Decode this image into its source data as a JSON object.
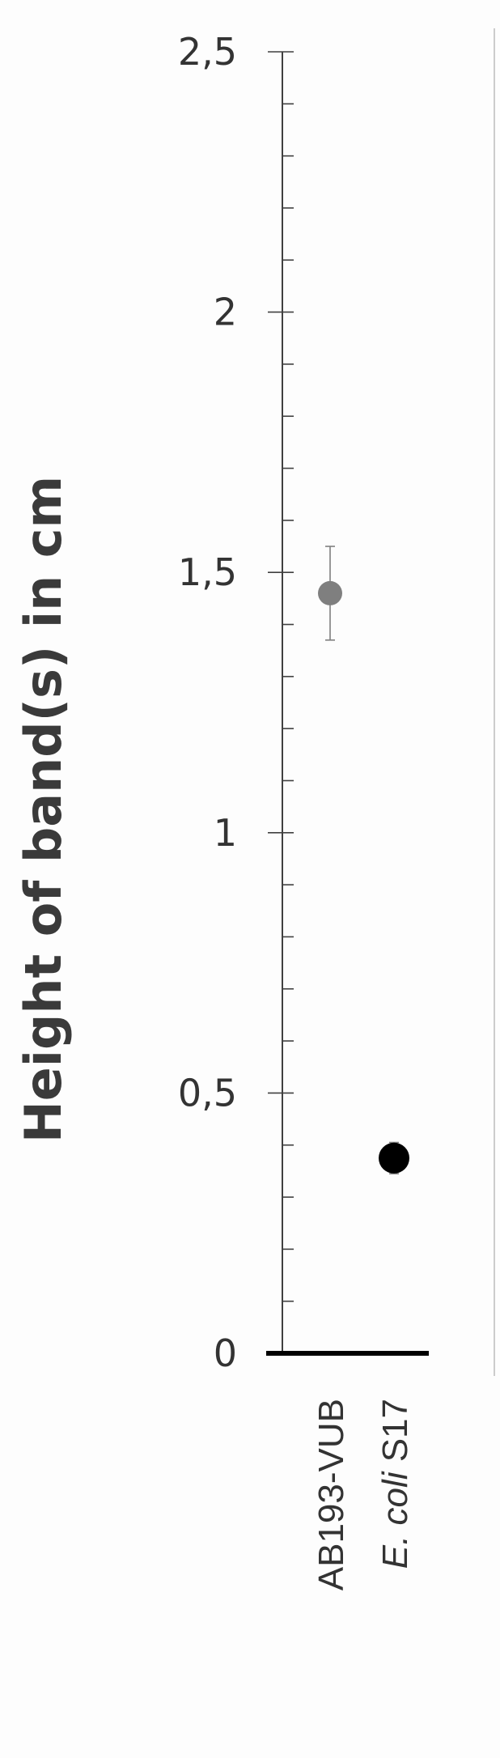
{
  "chart_data": {
    "type": "scatter",
    "title": "",
    "ylabel": "Height of band(s) in cm",
    "xlabel": "",
    "ylim": [
      0,
      2.5
    ],
    "y_major_ticks": [
      "0",
      "0,5",
      "1",
      "1,5",
      "2",
      "2,5"
    ],
    "y_minor_step": 0.1,
    "grid": false,
    "categories": [
      {
        "parts": [
          {
            "text": "AB193-VUB",
            "italic": false
          }
        ]
      },
      {
        "parts": [
          {
            "text": "E. coli",
            "italic": true
          },
          {
            "text": " S17",
            "italic": false
          }
        ]
      }
    ],
    "points": [
      {
        "category_index": 0,
        "y": 1.46,
        "error": 0.09,
        "color": "#7f7f7f"
      },
      {
        "category_index": 1,
        "y": 0.375,
        "error": 0.03,
        "color": "#000000"
      }
    ]
  },
  "colors": {
    "axis": "#404040",
    "baseline": "#000000",
    "tick_label": "#333333",
    "error_bar": "#7f7f7f",
    "frame_edge": "#cccccc"
  }
}
